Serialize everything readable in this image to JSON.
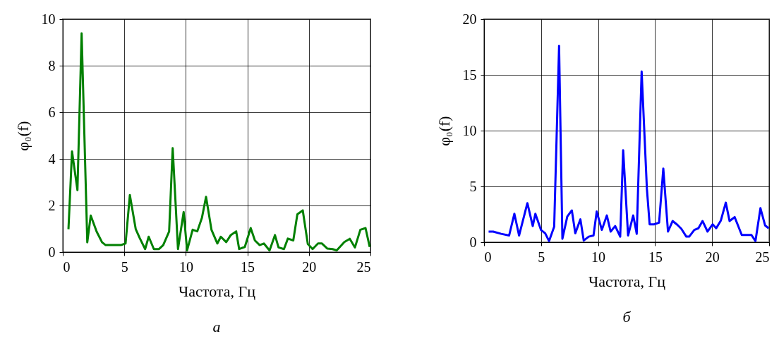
{
  "chart_data": [
    {
      "type": "line",
      "title": "а",
      "xlabel": "Частота, Гц",
      "ylabel": "φ₀(f)",
      "xlim": [
        0,
        25
      ],
      "xticks": [
        0,
        5,
        10,
        15,
        20,
        25
      ],
      "ylim": [
        0,
        10
      ],
      "yticks": [
        0,
        2,
        4,
        6,
        8,
        10
      ],
      "grid": true,
      "x": [
        0.46,
        0.75,
        1.19,
        1.53,
        1.99,
        2.27,
        2.75,
        3.19,
        3.48,
        4.72,
        5.1,
        5.45,
        5.93,
        6.25,
        6.69,
        6.98,
        7.4,
        7.82,
        8.16,
        8.64,
        8.93,
        9.36,
        9.82,
        10.1,
        10.55,
        10.93,
        11.31,
        11.64,
        12.08,
        12.56,
        12.84,
        13.28,
        13.65,
        14.09,
        14.33,
        14.79,
        15.27,
        15.61,
        16.0,
        16.34,
        16.8,
        17.24,
        17.53,
        17.97,
        18.29,
        18.73,
        19.06,
        19.5,
        19.91,
        20.3,
        20.74,
        21.06,
        21.5,
        21.92,
        22.25,
        22.88,
        23.32,
        23.74,
        24.18,
        24.6,
        24.94
      ],
      "series": [
        {
          "color": "#008000",
          "values": [
            0.98,
            4.32,
            2.66,
            9.39,
            0.42,
            1.57,
            0.88,
            0.42,
            0.3,
            0.3,
            0.37,
            2.45,
            0.98,
            0.6,
            0.13,
            0.66,
            0.13,
            0.13,
            0.3,
            0.88,
            4.46,
            0.13,
            1.72,
            0.07,
            0.96,
            0.89,
            1.48,
            2.37,
            0.96,
            0.37,
            0.66,
            0.43,
            0.73,
            0.89,
            0.13,
            0.22,
            1.03,
            0.5,
            0.3,
            0.37,
            0.07,
            0.73,
            0.2,
            0.13,
            0.58,
            0.5,
            1.62,
            1.79,
            0.35,
            0.13,
            0.37,
            0.37,
            0.15,
            0.13,
            0.07,
            0.43,
            0.57,
            0.2,
            0.96,
            1.03,
            0.22
          ]
        }
      ]
    },
    {
      "type": "line",
      "title": "б",
      "xlabel": "Частота, Гц",
      "ylabel": "φ₀(f)",
      "xlim": [
        0,
        25
      ],
      "xticks": [
        0,
        5,
        10,
        15,
        20,
        25
      ],
      "ylim": [
        0,
        20
      ],
      "yticks": [
        0,
        5,
        10,
        15,
        20
      ],
      "grid": true,
      "x": [
        0.4,
        0.8,
        1.5,
        2.2,
        2.66,
        3.07,
        3.8,
        4.27,
        4.5,
        4.99,
        5.36,
        5.7,
        6.15,
        6.58,
        6.87,
        7.3,
        7.7,
        8.0,
        8.45,
        8.74,
        9.18,
        9.6,
        9.88,
        10.33,
        10.77,
        11.1,
        11.5,
        11.94,
        12.2,
        12.63,
        13.08,
        13.39,
        13.82,
        14.28,
        14.52,
        14.9,
        15.35,
        15.72,
        16.13,
        16.54,
        16.96,
        17.3,
        17.74,
        17.99,
        18.44,
        18.8,
        19.16,
        19.6,
        20.05,
        20.36,
        20.77,
        21.2,
        21.53,
        21.98,
        22.6,
        23.45,
        23.8,
        24.24,
        24.65,
        24.96
      ],
      "series": [
        {
          "color": "#0000ff",
          "values": [
            0.95,
            0.95,
            0.75,
            0.6,
            2.55,
            0.6,
            3.5,
            1.45,
            2.55,
            1.1,
            0.8,
            0.1,
            1.4,
            17.6,
            0.3,
            2.3,
            2.85,
            0.8,
            2.05,
            0.15,
            0.5,
            0.6,
            2.75,
            1.1,
            2.4,
            0.95,
            1.45,
            0.5,
            8.25,
            0.6,
            2.4,
            0.75,
            15.3,
            4.8,
            1.6,
            1.6,
            1.75,
            6.6,
            0.95,
            1.9,
            1.55,
            1.2,
            0.5,
            0.5,
            1.1,
            1.25,
            1.9,
            0.95,
            1.6,
            1.25,
            1.95,
            3.55,
            1.9,
            2.25,
            0.65,
            0.65,
            0.1,
            3.05,
            1.5,
            1.25
          ]
        }
      ]
    }
  ]
}
